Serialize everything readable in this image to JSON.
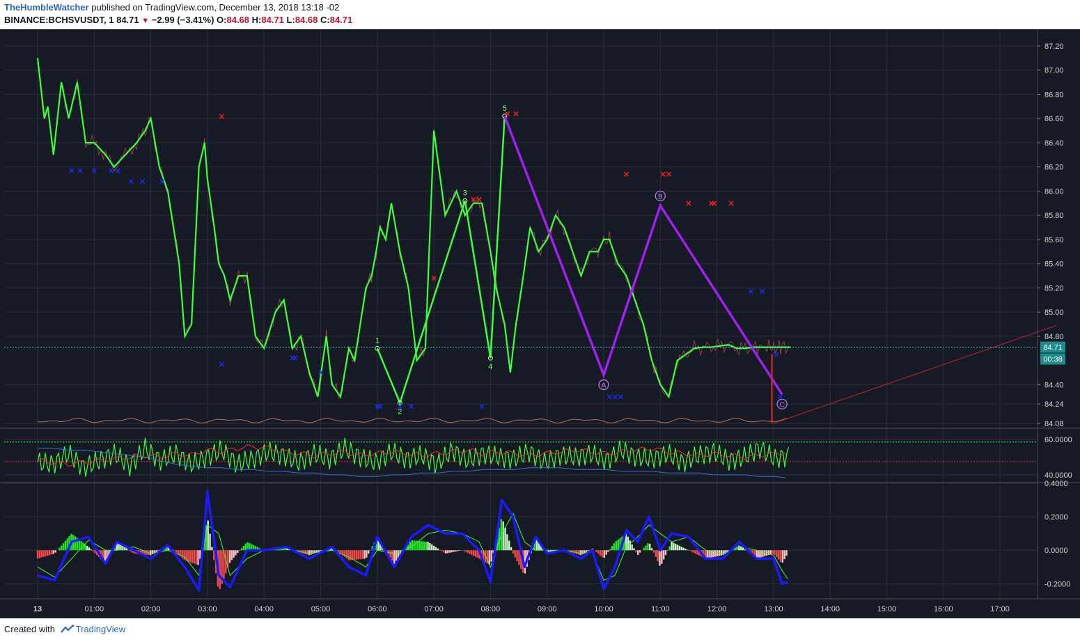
{
  "header": {
    "author": "TheHumbleWatcher",
    "published": "published on TradingView.com, December 13, 2018 13:18 -02"
  },
  "symbol_line": {
    "symbol": "BINANCE:BCHSVUSDT, 1",
    "last": "84.71",
    "change": "−2.99 (−3.41%)",
    "o_label": "O:",
    "o": "84.68",
    "h_label": "H:",
    "h": "84.71",
    "l_label": "L:",
    "l": "84.68",
    "c_label": "C:",
    "c": "84.71"
  },
  "footer": {
    "created_with": "Created with",
    "brand": "TradingView"
  },
  "colors": {
    "background": "#161a25",
    "grid": "#2a2e39",
    "price_line": "#3cff3c",
    "wave_line": "#a020f0",
    "buy_marker": "#1e2bff",
    "sell_marker": "#ff1e1e",
    "last_price_tag": "#1e8c8c",
    "macd": "#1a1aff",
    "signal": "#3cff3c"
  },
  "chart_data": [
    {
      "type": "line",
      "title": "BINANCE:BCHSVUSDT, 1",
      "ylim": [
        84.08,
        87.2
      ],
      "y_ticks": [
        "87.20",
        "87.00",
        "86.80",
        "86.60",
        "86.40",
        "86.20",
        "86.00",
        "85.80",
        "85.60",
        "85.40",
        "85.20",
        "85.00",
        "84.80",
        "84.40",
        "84.24",
        "84.08"
      ],
      "x_ticks": [
        "13",
        "01:00",
        "02:00",
        "03:00",
        "04:00",
        "05:00",
        "06:00",
        "07:00",
        "08:00",
        "09:00",
        "10:00",
        "11:00",
        "12:00",
        "13:00",
        "14:00",
        "15:00",
        "16:00",
        "17:00"
      ],
      "last_price": "84.71",
      "countdown": "00:38",
      "series": [
        {
          "x": [
            0.0,
            0.12,
            0.18,
            0.28,
            0.42,
            0.55,
            0.7,
            0.85,
            1.0,
            1.2,
            1.35,
            1.55,
            1.75,
            1.9,
            2.0,
            2.15,
            2.3,
            2.5,
            2.6,
            2.72,
            2.85,
            2.95,
            3.0,
            3.12,
            3.2,
            3.3,
            3.4,
            3.55,
            3.7,
            3.85,
            4.0,
            4.2,
            4.35,
            4.5,
            4.65,
            4.8,
            4.95,
            5.1,
            5.2,
            5.35,
            5.5,
            5.6,
            5.7,
            5.8,
            5.9,
            5.98,
            6.05,
            6.15,
            6.25,
            6.4,
            6.55,
            6.7,
            6.85,
            7.0,
            7.2,
            7.4,
            7.55,
            7.7,
            7.85,
            8.0,
            8.1,
            8.25,
            8.35,
            8.45,
            8.55,
            8.7,
            8.85,
            9.0,
            9.15,
            9.3,
            9.45,
            9.6,
            9.75,
            9.9,
            10.0,
            10.1,
            10.25,
            10.4,
            10.55,
            10.7,
            10.85,
            11.0,
            11.15,
            11.3,
            11.45,
            11.6,
            11.75,
            11.9,
            12.05,
            12.2,
            12.35,
            12.5,
            12.65,
            12.75,
            12.85,
            12.95,
            13.0,
            13.1,
            13.15,
            13.22,
            13.3
          ],
          "values": [
            87.1,
            86.6,
            86.7,
            86.3,
            86.9,
            86.6,
            86.9,
            86.4,
            86.4,
            86.3,
            86.2,
            86.3,
            86.4,
            86.5,
            86.6,
            86.2,
            86.0,
            85.4,
            84.8,
            84.9,
            86.2,
            86.4,
            86.1,
            85.7,
            85.4,
            85.3,
            85.1,
            85.3,
            85.3,
            84.8,
            84.7,
            85.0,
            85.1,
            84.7,
            84.8,
            84.5,
            84.3,
            84.8,
            84.4,
            84.3,
            84.7,
            84.6,
            84.9,
            85.2,
            85.3,
            85.5,
            85.7,
            85.6,
            85.9,
            85.5,
            85.2,
            84.6,
            84.7,
            86.5,
            85.8,
            86.0,
            85.8,
            85.9,
            85.9,
            85.5,
            85.2,
            84.9,
            84.5,
            84.9,
            85.2,
            85.7,
            85.5,
            85.6,
            85.8,
            85.7,
            85.5,
            85.3,
            85.5,
            85.5,
            85.6,
            85.6,
            85.4,
            85.3,
            85.1,
            84.9,
            84.6,
            84.4,
            84.3,
            84.6,
            84.65,
            84.7,
            84.71,
            84.71,
            84.72,
            84.73,
            84.7,
            84.7,
            84.71,
            84.71,
            84.71,
            84.71,
            84.71,
            84.71,
            84.71,
            84.71,
            84.71
          ],
          "name": ""
        }
      ],
      "wave_points": [
        {
          "label": "1",
          "x": 6.0,
          "y": 84.7
        },
        {
          "label": "2",
          "x": 6.4,
          "y": 84.25
        },
        {
          "label": "3",
          "x": 7.55,
          "y": 85.92
        },
        {
          "label": "4",
          "x": 8.0,
          "y": 84.62
        },
        {
          "label": "5",
          "x": 8.25,
          "y": 86.62
        }
      ],
      "abc_points": [
        {
          "label": "",
          "x": 8.25,
          "y": 86.62
        },
        {
          "label": "A",
          "x": 10.0,
          "y": 84.48
        },
        {
          "label": "B",
          "x": 11.0,
          "y": 85.88
        },
        {
          "label": "C",
          "x": 13.15,
          "y": 84.32
        }
      ],
      "sell_markers": [
        [
          3.25,
          86.62
        ],
        [
          7.0,
          85.28
        ],
        [
          7.7,
          85.93
        ],
        [
          7.8,
          85.93
        ],
        [
          8.3,
          86.64
        ],
        [
          8.45,
          86.64
        ],
        [
          10.4,
          86.14
        ],
        [
          11.05,
          86.14
        ],
        [
          11.15,
          86.14
        ],
        [
          11.5,
          85.9
        ],
        [
          11.9,
          85.9
        ],
        [
          11.95,
          85.9
        ],
        [
          12.25,
          85.9
        ]
      ],
      "buy_markers": [
        [
          0.6,
          86.17
        ],
        [
          0.75,
          86.17
        ],
        [
          1.0,
          86.17
        ],
        [
          1.3,
          86.17
        ],
        [
          1.42,
          86.17
        ],
        [
          1.65,
          86.08
        ],
        [
          1.85,
          86.08
        ],
        [
          2.2,
          86.08
        ],
        [
          3.25,
          84.57
        ],
        [
          4.5,
          84.62
        ],
        [
          4.55,
          84.62
        ],
        [
          5.0,
          84.5
        ],
        [
          6.0,
          84.22
        ],
        [
          6.05,
          84.22
        ],
        [
          6.4,
          84.22
        ],
        [
          6.6,
          84.22
        ],
        [
          7.85,
          84.22
        ],
        [
          10.1,
          84.3
        ],
        [
          10.2,
          84.3
        ],
        [
          10.3,
          84.3
        ],
        [
          12.6,
          85.17
        ],
        [
          12.8,
          85.17
        ],
        [
          13.05,
          84.65
        ],
        [
          13.12,
          84.3
        ]
      ],
      "trend_line": {
        "from": [
          13.0,
          84.08
        ],
        "to": [
          18.0,
          84.89
        ]
      }
    },
    {
      "type": "line",
      "title": "",
      "ylim": [
        36,
        66
      ],
      "y_ticks": [
        "60.0000",
        "40.0000"
      ],
      "levels": [
        58.6,
        47.5
      ],
      "series": [
        {
          "name": "",
          "values": [
            47,
            46,
            52,
            44,
            48,
            52,
            45,
            55,
            48,
            52,
            46,
            50,
            54,
            46,
            49,
            53,
            51,
            47,
            52,
            49,
            55,
            50,
            47,
            53,
            49,
            51,
            46,
            54,
            48,
            52,
            50,
            49,
            53,
            47,
            51,
            50,
            52,
            48,
            54,
            50,
            49,
            52,
            47,
            51,
            53,
            48,
            50,
            55,
            49,
            51
          ]
        },
        {
          "name": "",
          "values": [
            48,
            47,
            46,
            47,
            48,
            49,
            50,
            51,
            50,
            52,
            51,
            54,
            53,
            55,
            56,
            55,
            53,
            52,
            51,
            52,
            53,
            51,
            52,
            53,
            52,
            51,
            52,
            53,
            54,
            52,
            53,
            52,
            51,
            52,
            53,
            54,
            53,
            52,
            53,
            54,
            55,
            53,
            52,
            51,
            52,
            51,
            50,
            51,
            52,
            53
          ]
        },
        {
          "name": "",
          "values": [
            55,
            55,
            54,
            54,
            53,
            52,
            51,
            50,
            48,
            46,
            45,
            44,
            44,
            43,
            43,
            42,
            42,
            41,
            41,
            40,
            40,
            39,
            39,
            40,
            40,
            41,
            41,
            42,
            42,
            43,
            43,
            43,
            44,
            44,
            44,
            43,
            43,
            43,
            42,
            42,
            42,
            41,
            41,
            41,
            40,
            40,
            40,
            39,
            39,
            38
          ]
        }
      ]
    },
    {
      "type": "line",
      "title": "",
      "ylim": [
        -0.29,
        0.4
      ],
      "y_ticks": [
        "0.4000",
        "0.2000",
        "0.0000",
        "-0.2000"
      ],
      "series": [
        {
          "name": "",
          "x": [
            0.0,
            0.3,
            0.6,
            0.9,
            1.2,
            1.4,
            1.7,
            2.0,
            2.3,
            2.6,
            2.85,
            3.0,
            3.2,
            3.4,
            3.7,
            4.0,
            4.4,
            4.8,
            5.2,
            5.5,
            5.8,
            6.0,
            6.3,
            6.6,
            6.9,
            7.2,
            7.5,
            7.8,
            8.0,
            8.2,
            8.4,
            8.6,
            8.8,
            9.0,
            9.3,
            9.6,
            9.8,
            10.0,
            10.2,
            10.4,
            10.6,
            10.8,
            11.0,
            11.2,
            11.5,
            11.8,
            12.1,
            12.4,
            12.7,
            13.0,
            13.15,
            13.25
          ],
          "values": [
            -0.15,
            -0.18,
            0.05,
            0.08,
            -0.08,
            0.05,
            0.0,
            -0.05,
            0.03,
            -0.1,
            -0.24,
            0.35,
            -0.15,
            -0.22,
            0.0,
            0.0,
            0.02,
            -0.05,
            0.02,
            -0.1,
            -0.15,
            0.08,
            -0.1,
            0.08,
            0.15,
            0.1,
            0.1,
            0.0,
            -0.19,
            0.3,
            0.2,
            -0.1,
            0.08,
            -0.02,
            0.0,
            -0.05,
            0.0,
            -0.23,
            -0.1,
            0.12,
            0.05,
            0.2,
            0.0,
            0.1,
            0.08,
            -0.05,
            -0.05,
            0.05,
            -0.05,
            -0.05,
            -0.2,
            -0.19
          ]
        },
        {
          "name": "",
          "x": [
            0.0,
            0.3,
            0.6,
            0.9,
            1.2,
            1.4,
            1.7,
            2.0,
            2.3,
            2.6,
            2.85,
            3.0,
            3.2,
            3.4,
            3.7,
            4.0,
            4.4,
            4.8,
            5.2,
            5.5,
            5.8,
            6.0,
            6.3,
            6.6,
            6.9,
            7.2,
            7.5,
            7.8,
            8.0,
            8.2,
            8.4,
            8.6,
            8.8,
            9.0,
            9.3,
            9.6,
            9.8,
            10.0,
            10.2,
            10.4,
            10.6,
            10.8,
            11.0,
            11.2,
            11.5,
            11.8,
            12.1,
            12.4,
            12.7,
            13.0,
            13.15,
            13.25
          ],
          "values": [
            -0.1,
            -0.16,
            -0.05,
            0.06,
            0.0,
            0.0,
            0.02,
            -0.02,
            0.0,
            -0.04,
            -0.15,
            0.15,
            0.1,
            -0.15,
            -0.05,
            0.0,
            0.01,
            -0.02,
            0.0,
            -0.04,
            -0.1,
            0.0,
            -0.02,
            0.02,
            0.1,
            0.12,
            0.1,
            0.05,
            -0.1,
            0.1,
            0.22,
            0.05,
            0.0,
            0.0,
            0.0,
            -0.02,
            -0.01,
            -0.18,
            -0.15,
            0.02,
            0.08,
            0.15,
            0.1,
            0.05,
            0.08,
            0.0,
            -0.02,
            0.02,
            0.0,
            -0.03,
            -0.12,
            -0.17
          ]
        }
      ]
    }
  ]
}
